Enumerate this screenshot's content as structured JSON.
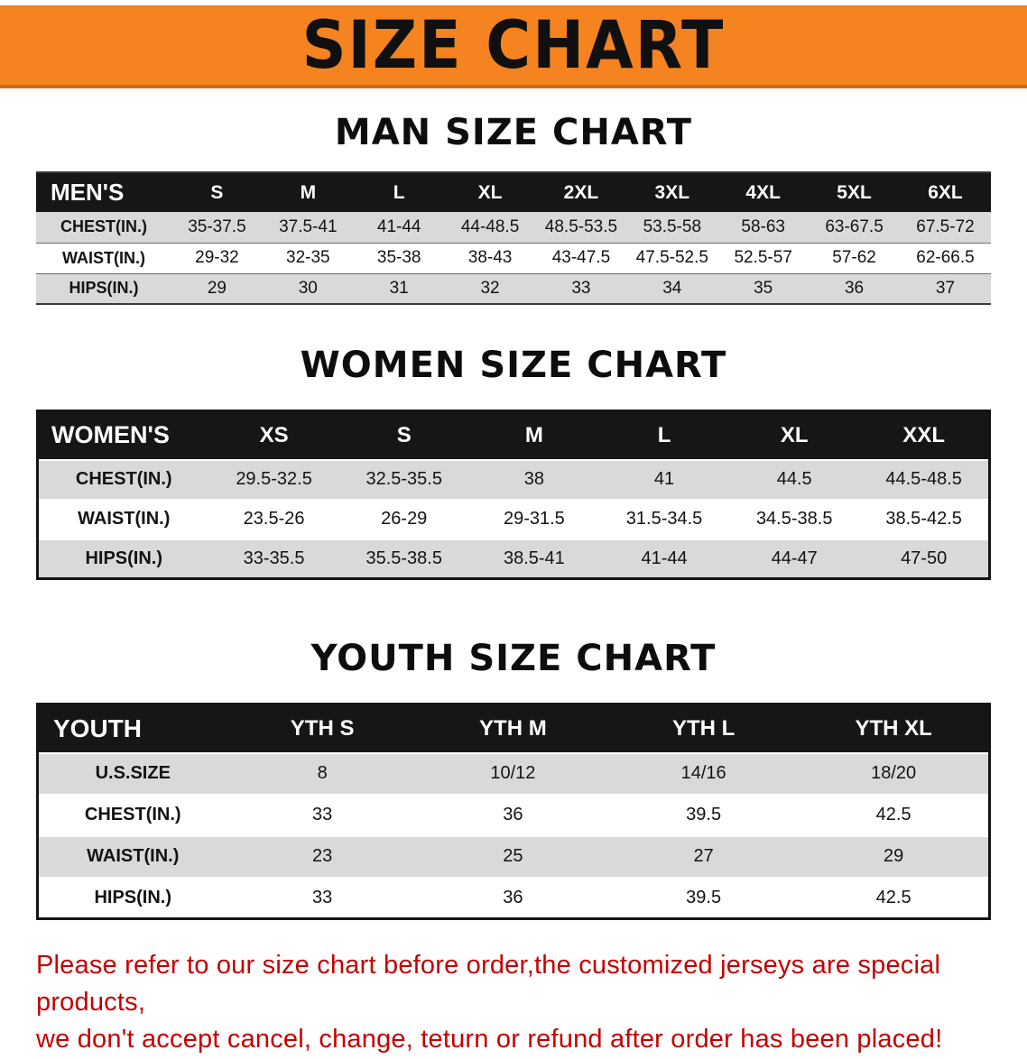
{
  "banner": {
    "title": "SIZE CHART"
  },
  "sections": [
    {
      "heading": "MAN SIZE CHART",
      "table": {
        "header": [
          "MEN'S",
          "S",
          "M",
          "L",
          "XL",
          "2XL",
          "3XL",
          "4XL",
          "5XL",
          "6XL"
        ],
        "rows": [
          {
            "label": "CHEST(IN.)",
            "values": [
              "35-37.5",
              "37.5-41",
              "41-44",
              "44-48.5",
              "48.5-53.5",
              "53.5-58",
              "58-63",
              "63-67.5",
              "67.5-72"
            ]
          },
          {
            "label": "WAIST(IN.)",
            "values": [
              "29-32",
              "32-35",
              "35-38",
              "38-43",
              "43-47.5",
              "47.5-52.5",
              "52.5-57",
              "57-62",
              "62-66.5"
            ]
          },
          {
            "label": "HIPS(IN.)",
            "values": [
              "29",
              "30",
              "31",
              "32",
              "33",
              "34",
              "35",
              "36",
              "37"
            ]
          }
        ]
      }
    },
    {
      "heading": "WOMEN SIZE CHART",
      "table": {
        "header": [
          "WOMEN'S",
          "XS",
          "S",
          "M",
          "L",
          "XL",
          "XXL"
        ],
        "rows": [
          {
            "label": "CHEST(IN.)",
            "values": [
              "29.5-32.5",
              "32.5-35.5",
              "38",
              "41",
              "44.5",
              "44.5-48.5"
            ]
          },
          {
            "label": "WAIST(IN.)",
            "values": [
              "23.5-26",
              "26-29",
              "29-31.5",
              "31.5-34.5",
              "34.5-38.5",
              "38.5-42.5"
            ]
          },
          {
            "label": "HIPS(IN.)",
            "values": [
              "33-35.5",
              "35.5-38.5",
              "38.5-41",
              "41-44",
              "44-47",
              "47-50"
            ]
          }
        ]
      }
    },
    {
      "heading": "YOUTH SIZE CHART",
      "table": {
        "header": [
          "YOUTH",
          "YTH S",
          "YTH M",
          "YTH L",
          "YTH XL"
        ],
        "rows": [
          {
            "label": "U.S.SIZE",
            "values": [
              "8",
              "10/12",
              "14/16",
              "18/20"
            ]
          },
          {
            "label": "CHEST(IN.)",
            "values": [
              "33",
              "36",
              "39.5",
              "42.5"
            ]
          },
          {
            "label": "WAIST(IN.)",
            "values": [
              "23",
              "25",
              "27",
              "29"
            ]
          },
          {
            "label": "HIPS(IN.)",
            "values": [
              "33",
              "36",
              "39.5",
              "42.5"
            ]
          }
        ]
      }
    }
  ],
  "footer": {
    "line1": "Please refer to our size chart before order,the customized jerseys are special products,",
    "line2": "we don't accept cancel, change, teturn or refund after order has been placed!"
  },
  "colors": {
    "banner_bg": "#F5831F",
    "banner_text": "#101010",
    "table_header_bg": "#161616",
    "table_header_text": "#FFFFFF",
    "row_stripe": "#D9D9D9",
    "disclaimer_text": "#C40000"
  }
}
